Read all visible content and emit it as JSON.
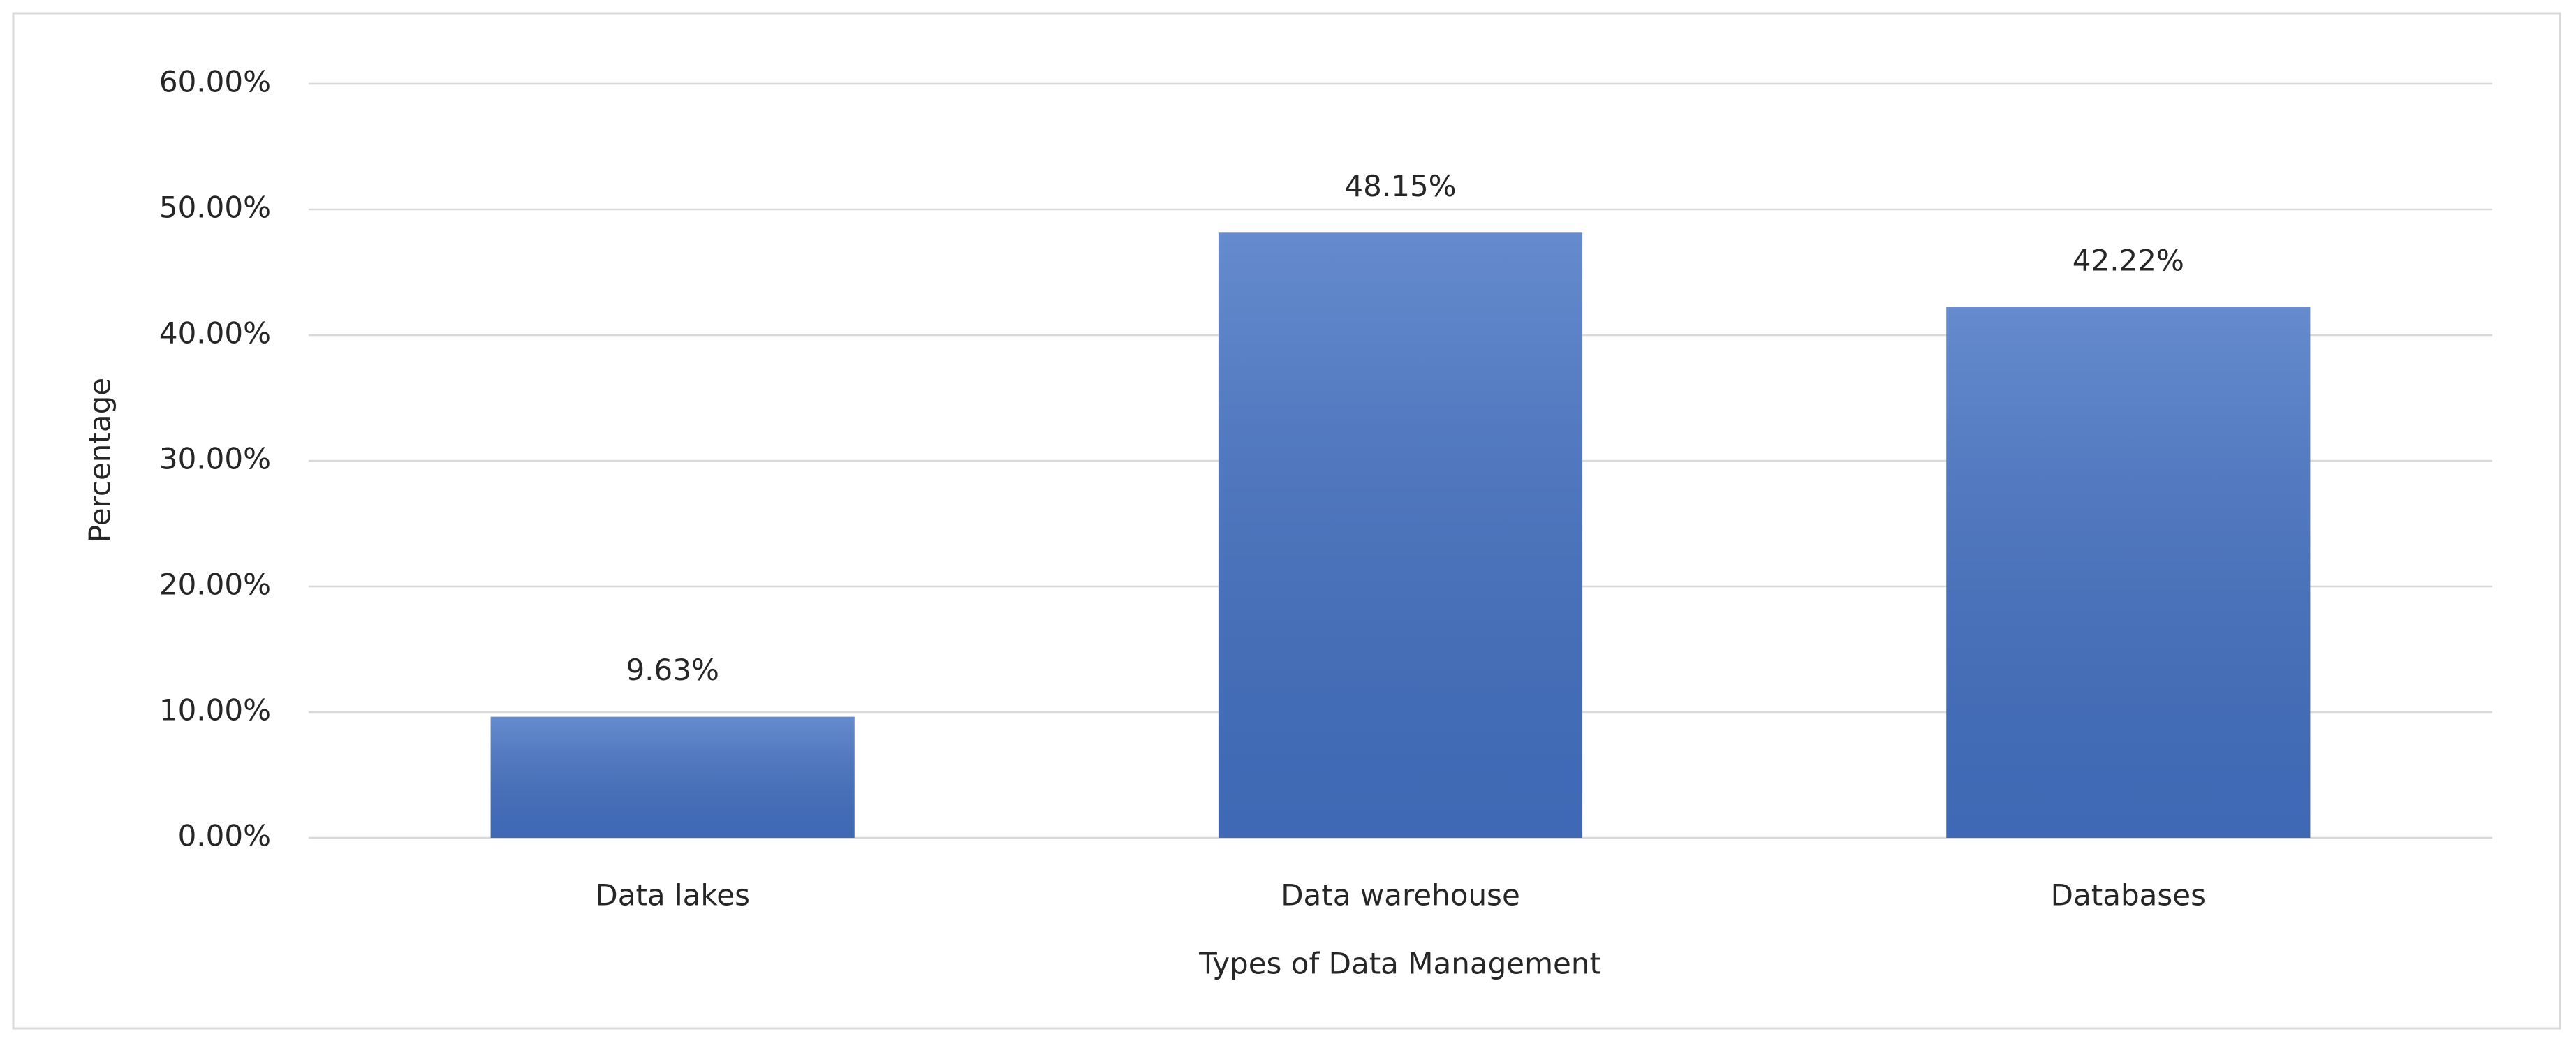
{
  "chart_data": {
    "type": "bar",
    "categories": [
      "Data lakes",
      "Data warehouse",
      "Databases"
    ],
    "values": [
      9.63,
      48.15,
      42.22
    ],
    "value_labels": [
      "9.63%",
      "48.15%",
      "42.22%"
    ],
    "color": "#4472c4",
    "x_label": "Types of Data Management",
    "y_label": "Percentage",
    "ylim": [
      0,
      60
    ],
    "yticks": [
      {
        "value": 0,
        "label": "0.00%"
      },
      {
        "value": 10,
        "label": "10.00%"
      },
      {
        "value": 20,
        "label": "20.00%"
      },
      {
        "value": 30,
        "label": "30.00%"
      },
      {
        "value": 40,
        "label": "40.00%"
      },
      {
        "value": 50,
        "label": "50.00%"
      },
      {
        "value": 60,
        "label": "60.00%"
      }
    ],
    "grid": true
  }
}
